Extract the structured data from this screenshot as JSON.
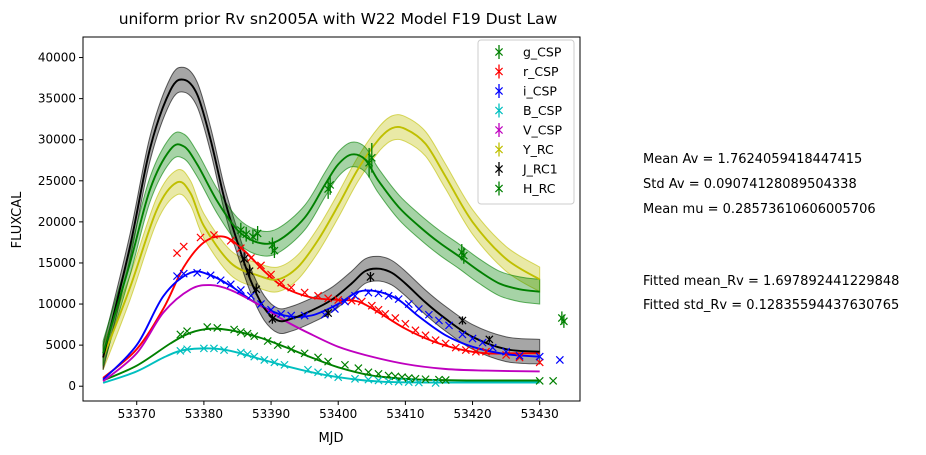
{
  "chart_data": {
    "type": "line",
    "title": "uniform prior Rv sn2005A with W22 Model F19 Dust Law",
    "xlabel": "MJD",
    "ylabel": "FLUXCAL",
    "xlim": [
      53362,
      53436
    ],
    "ylim": [
      -1800,
      42500
    ],
    "xticks": [
      53370,
      53380,
      53390,
      53400,
      53410,
      53420,
      53430
    ],
    "yticks": [
      0,
      5000,
      10000,
      15000,
      20000,
      25000,
      30000,
      35000,
      40000
    ],
    "grid": false,
    "legend_position": "top-right",
    "series": [
      {
        "name": "g_CSP",
        "color": "#008000",
        "model": {
          "x": [
            53365,
            53370,
            53375,
            53378,
            53381,
            53384,
            53388,
            53392,
            53396,
            53400,
            53405,
            53410,
            53415,
            53420,
            53425,
            53430
          ],
          "y": [
            700,
            2500,
            5200,
            6500,
            7000,
            6800,
            6000,
            4800,
            3500,
            2300,
            1300,
            900,
            750,
            700,
            700,
            700
          ]
        },
        "points": [
          [
            53376.5,
            6300
          ],
          [
            53377.5,
            6700
          ],
          [
            53380.5,
            7200
          ],
          [
            53382,
            7100
          ],
          [
            53384.5,
            6900
          ],
          [
            53385.5,
            6600
          ],
          [
            53386.5,
            6400
          ],
          [
            53387.5,
            6100
          ],
          [
            53389.5,
            5500
          ],
          [
            53391,
            5000
          ],
          [
            53393,
            4500
          ],
          [
            53395,
            4000
          ],
          [
            53397,
            3500
          ],
          [
            53398.5,
            3000
          ],
          [
            53401,
            2600
          ],
          [
            53403,
            2200
          ],
          [
            53404.5,
            1700
          ],
          [
            53406,
            1500
          ],
          [
            53407.5,
            1300
          ],
          [
            53408.5,
            1200
          ],
          [
            53409.5,
            1100
          ],
          [
            53410.5,
            1000
          ],
          [
            53411.5,
            900
          ],
          [
            53413,
            850
          ],
          [
            53415,
            800
          ],
          [
            53416,
            750
          ],
          [
            53430,
            650
          ],
          [
            53432,
            650
          ]
        ]
      },
      {
        "name": "r_CSP",
        "color": "#ff0000",
        "model": {
          "x": [
            53365,
            53370,
            53374,
            53377,
            53380,
            53383,
            53386,
            53389,
            53392,
            53396,
            53400,
            53403,
            53406,
            53410,
            53414,
            53418,
            53422,
            53426,
            53430
          ],
          "y": [
            1000,
            4500,
            9500,
            14500,
            17500,
            18200,
            16500,
            14000,
            12000,
            10800,
            10500,
            10300,
            9000,
            7000,
            5500,
            4500,
            4000,
            4000,
            4000
          ]
        },
        "points": [
          [
            53376,
            16200
          ],
          [
            53377,
            17000
          ],
          [
            53379.5,
            18100
          ],
          [
            53381.5,
            18400
          ],
          [
            53384,
            17700
          ],
          [
            53385.5,
            16800
          ],
          [
            53387,
            15600
          ],
          [
            53388.5,
            14700
          ],
          [
            53390,
            13600
          ],
          [
            53391.5,
            12600
          ],
          [
            53393,
            12000
          ],
          [
            53395,
            11400
          ],
          [
            53397,
            11000
          ],
          [
            53398.5,
            10700
          ],
          [
            53400,
            10500
          ],
          [
            53402,
            10400
          ],
          [
            53403.5,
            10300
          ],
          [
            53405,
            9800
          ],
          [
            53406,
            9300
          ],
          [
            53407,
            8800
          ],
          [
            53408.5,
            8300
          ],
          [
            53410,
            7600
          ],
          [
            53411.5,
            6800
          ],
          [
            53413,
            6200
          ],
          [
            53414.5,
            5600
          ],
          [
            53416,
            5200
          ],
          [
            53417.5,
            4700
          ],
          [
            53419,
            4400
          ],
          [
            53420.5,
            4200
          ],
          [
            53422,
            4200
          ],
          [
            53425,
            3800
          ],
          [
            53427,
            3500
          ],
          [
            53430,
            2900
          ]
        ]
      },
      {
        "name": "i_CSP",
        "color": "#0000ff",
        "model": {
          "x": [
            53365,
            53370,
            53374,
            53378,
            53381,
            53384,
            53388,
            53392,
            53396,
            53400,
            53403,
            53406,
            53409,
            53412,
            53416,
            53420,
            53425,
            53430
          ],
          "y": [
            800,
            5000,
            11000,
            13800,
            13500,
            12200,
            10000,
            8600,
            8600,
            10000,
            11500,
            11500,
            10500,
            8500,
            6200,
            4800,
            3900,
            3600
          ]
        },
        "points": [
          [
            53376,
            13400
          ],
          [
            53377,
            13700
          ],
          [
            53379,
            13800
          ],
          [
            53381,
            13500
          ],
          [
            53382.5,
            12900
          ],
          [
            53384,
            12400
          ],
          [
            53385.5,
            11700
          ],
          [
            53387,
            11000
          ],
          [
            53388.5,
            10000
          ],
          [
            53390,
            9300
          ],
          [
            53391.5,
            8800
          ],
          [
            53393,
            8600
          ],
          [
            53395,
            8600
          ],
          [
            53398,
            8700
          ],
          [
            53399.5,
            9400
          ],
          [
            53401,
            10300
          ],
          [
            53402.5,
            11000
          ],
          [
            53404.5,
            11400
          ],
          [
            53406,
            11300
          ],
          [
            53407.5,
            11000
          ],
          [
            53409,
            10600
          ],
          [
            53410.5,
            10000
          ],
          [
            53412,
            9400
          ],
          [
            53413.5,
            8700
          ],
          [
            53415,
            8000
          ],
          [
            53416.5,
            7400
          ],
          [
            53418.5,
            6300
          ],
          [
            53420,
            5800
          ],
          [
            53421.5,
            5300
          ],
          [
            53423,
            4700
          ],
          [
            53425,
            4200
          ],
          [
            53427,
            3700
          ],
          [
            53430,
            3600
          ],
          [
            53433,
            3200
          ]
        ]
      },
      {
        "name": "B_CSP",
        "color": "#00bfbf",
        "model": {
          "x": [
            53365,
            53370,
            53374,
            53377,
            53381,
            53384,
            53388,
            53392,
            53396,
            53400,
            53404,
            53408,
            53413,
            53418,
            53424,
            53430
          ],
          "y": [
            400,
            1800,
            3500,
            4400,
            4600,
            4300,
            3400,
            2500,
            1700,
            1100,
            700,
            500,
            450,
            450,
            450,
            450
          ]
        },
        "points": [
          [
            53376.5,
            4300
          ],
          [
            53377.5,
            4500
          ],
          [
            53380,
            4600
          ],
          [
            53381.5,
            4600
          ],
          [
            53383,
            4400
          ],
          [
            53385.5,
            4100
          ],
          [
            53386.5,
            3900
          ],
          [
            53387.5,
            3600
          ],
          [
            53389,
            3200
          ],
          [
            53390.5,
            2900
          ],
          [
            53392,
            2600
          ],
          [
            53395.5,
            2000
          ],
          [
            53397,
            1700
          ],
          [
            53398.5,
            1400
          ],
          [
            53400,
            1100
          ],
          [
            53402.5,
            900
          ],
          [
            53404.5,
            800
          ],
          [
            53406,
            700
          ],
          [
            53407.5,
            600
          ],
          [
            53409,
            550
          ],
          [
            53410.5,
            500
          ],
          [
            53412,
            450
          ],
          [
            53414.5,
            400
          ]
        ]
      },
      {
        "name": "V_CSP",
        "color": "#bf00bf",
        "model": {
          "x": [
            53365,
            53370,
            53374,
            53378,
            53381,
            53384,
            53388,
            53392,
            53396,
            53400,
            53404,
            53410,
            53416,
            53422,
            53430
          ],
          "y": [
            600,
            4000,
            9000,
            11800,
            12300,
            11700,
            10000,
            8000,
            6300,
            4800,
            3800,
            2700,
            2100,
            1900,
            1800
          ]
        },
        "points": []
      },
      {
        "name": "Y_RC",
        "color": "#bfbf00",
        "model": {
          "x": [
            53365,
            53369,
            53373,
            53376,
            53378,
            53380,
            53384,
            53388,
            53391,
            53394,
            53397,
            53400,
            53403,
            53406,
            53408,
            53410,
            53413,
            53416,
            53420,
            53425,
            53430
          ],
          "y": [
            3500,
            12000,
            21500,
            24800,
            23500,
            19500,
            15000,
            13500,
            13000,
            14500,
            17800,
            22000,
            26500,
            30000,
            31400,
            31300,
            29500,
            25500,
            20000,
            15500,
            13000
          ]
        },
        "band": 1500,
        "points": []
      },
      {
        "name": "J_RC1",
        "color": "#000000",
        "model": {
          "x": [
            53365,
            53369,
            53372,
            53375,
            53377,
            53379,
            53381,
            53383,
            53385,
            53387,
            53389,
            53391,
            53393,
            53396,
            53399,
            53402,
            53404,
            53406,
            53408,
            53410,
            53413,
            53416,
            53420,
            53425,
            53430
          ],
          "y": [
            3500,
            17000,
            29000,
            36000,
            37300,
            35500,
            30000,
            23000,
            17500,
            12800,
            9500,
            8000,
            8200,
            9200,
            10500,
            12500,
            14000,
            14300,
            13800,
            12500,
            10200,
            8200,
            6000,
            4500,
            4200
          ]
        },
        "band": 1500,
        "points": [
          [
            53386,
            15500
          ],
          [
            53386.8,
            14000
          ],
          [
            53387.8,
            11800
          ],
          [
            53390.2,
            8200
          ],
          [
            53398.5,
            8900
          ],
          [
            53404.8,
            13300
          ],
          [
            53418.5,
            8000
          ],
          [
            53422.5,
            5700
          ]
        ],
        "errors": [
          800,
          800,
          700,
          600,
          500,
          600,
          500,
          400
        ]
      },
      {
        "name": "H_RC",
        "color": "#008000",
        "model": {
          "x": [
            53365,
            53369,
            53372,
            53375,
            53377,
            53379,
            53382,
            53385,
            53388,
            53391,
            53395,
            53398,
            53400,
            53402,
            53404,
            53406,
            53409,
            53412,
            53415,
            53418,
            53421,
            53424,
            53427,
            53430
          ],
          "y": [
            4000,
            15000,
            24000,
            28800,
            29200,
            27000,
            22500,
            19000,
            17500,
            17700,
            20500,
            24500,
            27000,
            28200,
            27600,
            25000,
            21800,
            19500,
            17500,
            15800,
            14000,
            12500,
            11800,
            11500
          ]
        },
        "band": 1500,
        "points": [
          [
            53385.5,
            19000
          ],
          [
            53386.3,
            18500
          ],
          [
            53387.3,
            18200
          ],
          [
            53388,
            18600
          ],
          [
            53390.2,
            17200
          ],
          [
            53390.5,
            16500
          ],
          [
            53398.5,
            24000
          ],
          [
            53398.8,
            24500
          ],
          [
            53404.6,
            27200
          ],
          [
            53405,
            27800
          ],
          [
            53418.4,
            16300
          ],
          [
            53418.7,
            15900
          ],
          [
            53433.3,
            8300
          ],
          [
            53433.6,
            7900
          ]
        ],
        "errors": [
          900,
          900,
          900,
          900,
          900,
          900,
          1200,
          1200,
          1800,
          1800,
          1000,
          1000,
          800,
          800
        ]
      }
    ]
  },
  "stats": {
    "mean_av": "Mean Av = 1.7624059418447415",
    "std_av": "Std Av = 0.09074128089504338",
    "mean_mu": "Mean mu = 0.28573610606005706",
    "fitted_mean_rv": "Fitted mean_Rv = 1.697892441229848",
    "fitted_std_rv": "Fitted std_Rv = 0.12835594437630765"
  }
}
